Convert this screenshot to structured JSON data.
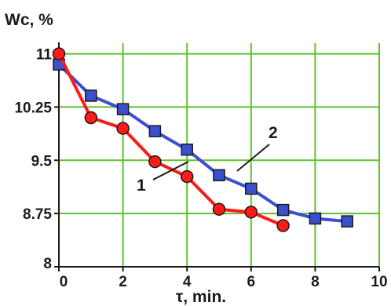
{
  "chart_data": {
    "type": "line",
    "ylabel": "Wc, %",
    "xlabel": "τ, min.",
    "xlim": [
      0,
      10
    ],
    "ylim": [
      8,
      11.15
    ],
    "xticks": [
      0,
      2,
      4,
      6,
      8,
      10
    ],
    "xtick_labels": [
      "0",
      "2",
      "4",
      "6",
      "8",
      "10"
    ],
    "yticks": [
      8,
      8.75,
      9.5,
      10.25,
      11
    ],
    "ytick_labels": [
      "8",
      "8.75",
      "9.5",
      "10.25",
      "11"
    ],
    "grid": true,
    "colors": {
      "grid": "#5ec22e",
      "axis": "#1a1a1a"
    },
    "series": [
      {
        "name": "1",
        "marker": "circle",
        "color": "#ff1a1a",
        "line_color": "#ff1a1a",
        "x": [
          0,
          1,
          2,
          3,
          4,
          5,
          6,
          7
        ],
        "y": [
          11.0,
          10.1,
          9.95,
          9.48,
          9.27,
          8.81,
          8.77,
          8.58
        ]
      },
      {
        "name": "2",
        "marker": "square",
        "color": "#3b4fd0",
        "line_color": "#3b4fd0",
        "x": [
          0,
          1,
          2,
          3,
          4,
          5,
          6,
          7,
          8,
          9
        ],
        "y": [
          10.85,
          10.41,
          10.22,
          9.91,
          9.65,
          9.29,
          9.1,
          8.8,
          8.68,
          8.64
        ]
      }
    ],
    "annotations": [
      {
        "text": "1",
        "series": "1"
      },
      {
        "text": "2",
        "series": "2"
      }
    ]
  }
}
